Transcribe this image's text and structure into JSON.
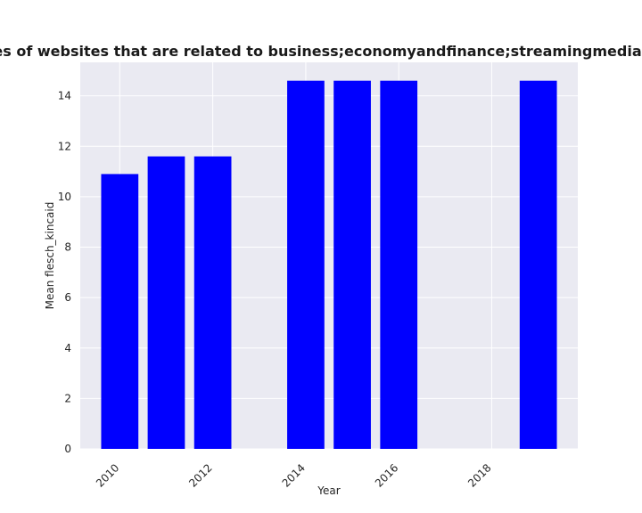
{
  "chart_data": {
    "type": "bar",
    "title": "Mean flesch_kincaid in privacy policies of websites that are related to business;economyandfinance;streamingmedia Mean flesch_kincaid in privacy policies",
    "xlabel": "Year",
    "ylabel": "Mean flesch_kincaid",
    "x": [
      2010,
      2011,
      2012,
      2014,
      2015,
      2016,
      2019
    ],
    "values": [
      10.9,
      11.6,
      11.6,
      14.6,
      14.6,
      14.6,
      14.6
    ],
    "xlim": [
      2009.15,
      2019.85
    ],
    "ylim": [
      0,
      15.33
    ],
    "xticks": [
      2010,
      2012,
      2014,
      2016,
      2018
    ],
    "yticks": [
      0,
      2,
      4,
      6,
      8,
      10,
      12,
      14
    ],
    "bar_color": "#0000ff",
    "plot_background": "#eaeaf2",
    "grid_color": "#ffffff",
    "grid": true
  }
}
